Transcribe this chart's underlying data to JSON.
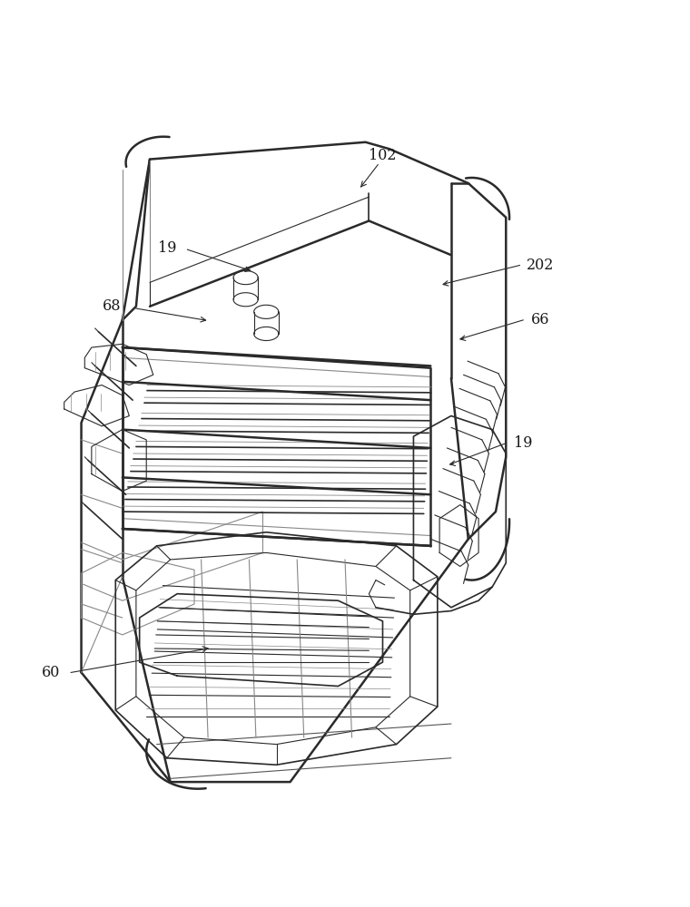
{
  "background_color": "#ffffff",
  "line_color": "#2a2a2a",
  "light_line_color": "#888888",
  "label_color": "#1a1a1a",
  "figsize": [
    7.6,
    10.0
  ],
  "dpi": 100
}
